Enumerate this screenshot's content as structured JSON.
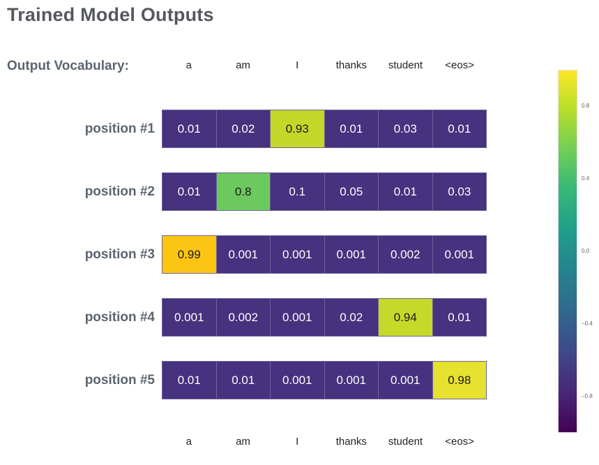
{
  "title": "Trained Model Outputs",
  "vocab_label": "Output Vocabulary:",
  "columns": [
    "a",
    "am",
    "I",
    "thanks",
    "student",
    "<eos>"
  ],
  "rows": [
    {
      "label": "position #1",
      "values": [
        "0.01",
        "0.02",
        "0.93",
        "0.01",
        "0.03",
        "0.01"
      ],
      "highlight_index": 2,
      "highlight_color": "#c3d828"
    },
    {
      "label": "position #2",
      "values": [
        "0.01",
        "0.8",
        "0.1",
        "0.05",
        "0.01",
        "0.03"
      ],
      "highlight_index": 1,
      "highlight_color": "#6cc95e"
    },
    {
      "label": "position #3",
      "values": [
        "0.99",
        "0.001",
        "0.001",
        "0.001",
        "0.002",
        "0.001"
      ],
      "highlight_index": 0,
      "highlight_color": "#fcc514"
    },
    {
      "label": "position #4",
      "values": [
        "0.001",
        "0.002",
        "0.001",
        "0.02",
        "0.94",
        "0.01"
      ],
      "highlight_index": 4,
      "highlight_color": "#c5d92a"
    },
    {
      "label": "position #5",
      "values": [
        "0.01",
        "0.01",
        "0.001",
        "0.001",
        "0.001",
        "0.98"
      ],
      "highlight_index": 5,
      "highlight_color": "#e7e130"
    }
  ],
  "colors": {
    "cell_bg": "#46327e",
    "cell_text": "#ffffff",
    "highlight_text": "#1a1a1a",
    "title_text": "#55585e",
    "label_text": "#5b6570",
    "header_text": "#1f1f1f",
    "grid_line": "#6e649c"
  },
  "colorbar": {
    "min": -1,
    "max": 1,
    "ticks": [
      {
        "value": 0.8,
        "label": "0.8"
      },
      {
        "value": 0.4,
        "label": "0.4"
      },
      {
        "value": 0.0,
        "label": "0.0"
      },
      {
        "value": -0.4,
        "label": "−0.4"
      },
      {
        "value": -0.8,
        "label": "−0.8"
      }
    ],
    "gradient": [
      "#fde725",
      "#b5de2b",
      "#6ece58",
      "#35b779",
      "#1f9e89",
      "#26828e",
      "#31688e",
      "#3e4989",
      "#482878",
      "#440154"
    ]
  },
  "chart_data": {
    "type": "heatmap",
    "title": "Trained Model Outputs",
    "x_categories": [
      "a",
      "am",
      "I",
      "thanks",
      "student",
      "<eos>"
    ],
    "y_categories": [
      "position #1",
      "position #2",
      "position #3",
      "position #4",
      "position #5"
    ],
    "values": [
      [
        0.01,
        0.02,
        0.93,
        0.01,
        0.03,
        0.01
      ],
      [
        0.01,
        0.8,
        0.1,
        0.05,
        0.01,
        0.03
      ],
      [
        0.99,
        0.001,
        0.001,
        0.001,
        0.002,
        0.001
      ],
      [
        0.001,
        0.002,
        0.001,
        0.02,
        0.94,
        0.01
      ],
      [
        0.01,
        0.01,
        0.001,
        0.001,
        0.001,
        0.98
      ]
    ],
    "colormap": "viridis",
    "colorbar_range": [
      -1,
      1
    ],
    "colorbar_ticks": [
      0.8,
      0.4,
      0.0,
      -0.4,
      -0.8
    ],
    "legend_position": "right",
    "grid": false
  }
}
